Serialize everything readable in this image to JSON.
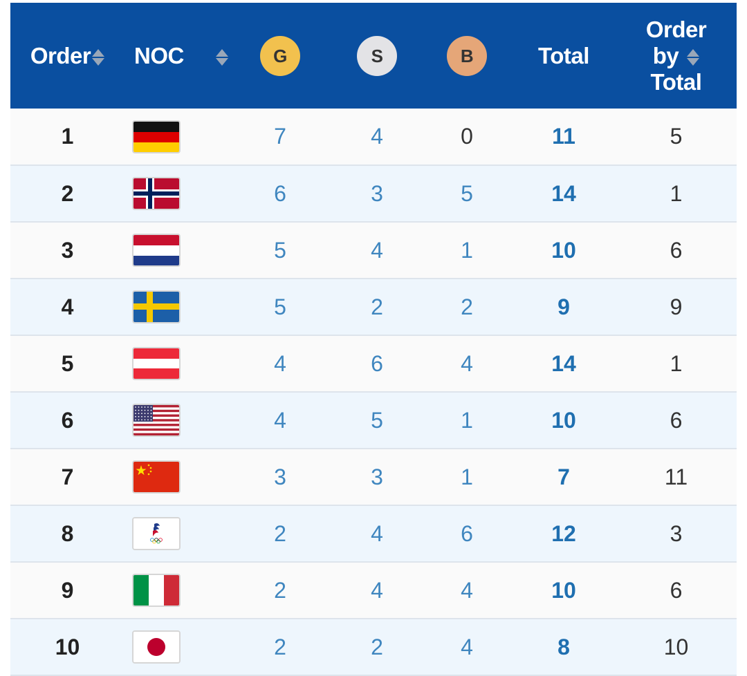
{
  "header": {
    "order_label": "Order",
    "noc_label": "NOC",
    "gold_label": "G",
    "silver_label": "S",
    "bronze_label": "B",
    "total_label": "Total",
    "order_by_total_line1": "Order",
    "order_by_total_line2": "by",
    "order_by_total_line3": "Total"
  },
  "colors": {
    "header_bg": "#0a4fa0",
    "gold": "#f2c14e",
    "silver": "#e3e3e6",
    "bronze": "#e5a678",
    "value_blue": "#3f86bf",
    "total_blue": "#1f6fb0"
  },
  "rows": [
    {
      "order": "1",
      "flag": "germany-flag",
      "gold": "7",
      "silver": "4",
      "bronze": "0",
      "total": "11",
      "order_by_total": "5"
    },
    {
      "order": "2",
      "flag": "norway-flag",
      "gold": "6",
      "silver": "3",
      "bronze": "5",
      "total": "14",
      "order_by_total": "1"
    },
    {
      "order": "3",
      "flag": "netherlands-flag",
      "gold": "5",
      "silver": "4",
      "bronze": "1",
      "total": "10",
      "order_by_total": "6"
    },
    {
      "order": "4",
      "flag": "sweden-flag",
      "gold": "5",
      "silver": "2",
      "bronze": "2",
      "total": "9",
      "order_by_total": "9"
    },
    {
      "order": "5",
      "flag": "austria-flag",
      "gold": "4",
      "silver": "6",
      "bronze": "4",
      "total": "14",
      "order_by_total": "1"
    },
    {
      "order": "6",
      "flag": "usa-flag",
      "gold": "4",
      "silver": "5",
      "bronze": "1",
      "total": "10",
      "order_by_total": "6"
    },
    {
      "order": "7",
      "flag": "china-flag",
      "gold": "3",
      "silver": "3",
      "bronze": "1",
      "total": "7",
      "order_by_total": "11"
    },
    {
      "order": "8",
      "flag": "roc-flag",
      "gold": "2",
      "silver": "4",
      "bronze": "6",
      "total": "12",
      "order_by_total": "3"
    },
    {
      "order": "9",
      "flag": "italy-flag",
      "gold": "2",
      "silver": "4",
      "bronze": "4",
      "total": "10",
      "order_by_total": "6"
    },
    {
      "order": "10",
      "flag": "japan-flag",
      "gold": "2",
      "silver": "2",
      "bronze": "4",
      "total": "8",
      "order_by_total": "10"
    }
  ]
}
